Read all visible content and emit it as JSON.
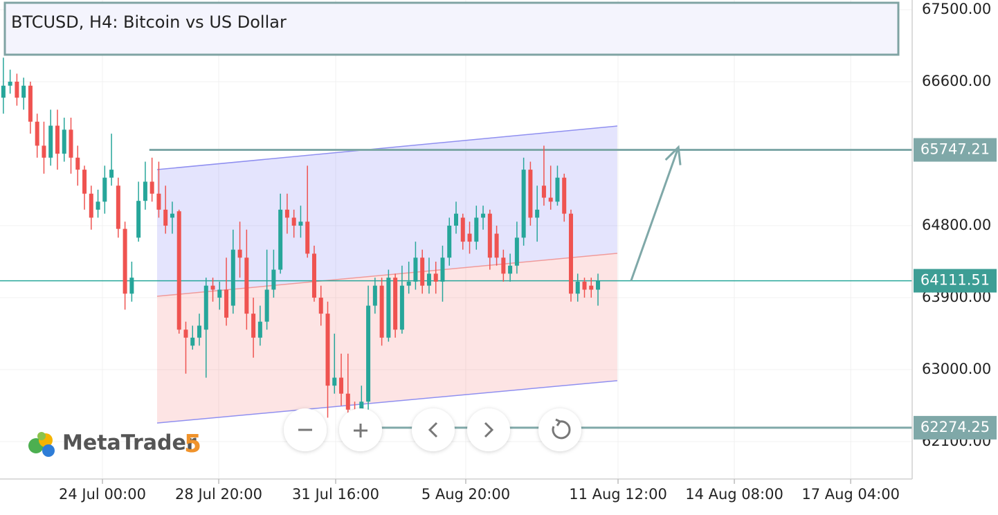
{
  "chart_data": {
    "type": "candlestick",
    "title": "BTCUSD, H4: Bitcoin vs US Dollar",
    "logo": {
      "name": "MetaTrader",
      "version": "5"
    },
    "up_color": "#26a69a",
    "down_color": "#ef5350",
    "x": [
      0,
      1,
      2,
      3,
      4,
      5,
      6,
      7,
      8,
      9,
      10,
      11,
      12,
      13,
      14,
      15,
      16,
      17,
      18,
      19,
      20,
      21,
      22,
      23,
      24,
      25,
      26,
      27,
      28,
      29,
      30,
      31,
      32,
      33,
      34,
      35,
      36,
      37,
      38,
      39,
      40,
      41,
      42,
      43,
      44,
      45,
      46,
      47,
      48,
      49,
      50,
      51,
      52,
      53,
      54,
      55,
      56,
      57,
      58,
      59,
      60,
      61,
      62,
      63,
      64,
      65,
      66,
      67,
      68,
      69,
      70,
      71,
      72,
      73,
      74,
      75,
      76,
      77,
      78,
      79,
      80,
      81,
      82,
      83,
      84,
      85,
      86,
      87,
      88
    ],
    "open": [
      66400,
      66550,
      66600,
      66400,
      66550,
      66100,
      65800,
      65650,
      66050,
      65700,
      66000,
      65650,
      65500,
      65200,
      65000,
      65100,
      65400,
      65300,
      64760,
      63950,
      64650,
      65110,
      65350,
      65200,
      65000,
      64900,
      64980,
      63500,
      63300,
      63400,
      63500,
      64050,
      63900,
      64000,
      63800,
      64500,
      64400,
      63700,
      63400,
      63600,
      64000,
      64250,
      65000,
      64900,
      64800,
      64850,
      64450,
      63900,
      63700,
      62800,
      62900,
      62700,
      62500,
      62450,
      62600,
      63800,
      64050,
      63400,
      64150,
      63500,
      64050,
      64100,
      64400,
      64050,
      64200,
      64100,
      64400,
      64800,
      64900,
      64700,
      64600,
      64900,
      64950,
      64700,
      64400,
      64200,
      64300,
      64650,
      65500,
      64900,
      65300,
      65150,
      65100,
      65400,
      64950,
      63950,
      64100,
      64050,
      64000
    ],
    "high": [
      66900,
      66750,
      66700,
      66650,
      66600,
      66200,
      66100,
      66250,
      66250,
      66150,
      66150,
      65800,
      65550,
      65300,
      65250,
      65550,
      65950,
      65400,
      64850,
      64350,
      65350,
      65600,
      65650,
      65600,
      65300,
      65100,
      65000,
      63600,
      63550,
      63700,
      64150,
      64150,
      64100,
      64400,
      64750,
      64850,
      64750,
      63900,
      63800,
      64500,
      64500,
      65200,
      65200,
      65000,
      65050,
      65550,
      64550,
      64050,
      63850,
      63450,
      63200,
      63200,
      62600,
      62800,
      64050,
      64150,
      64150,
      64250,
      64200,
      64300,
      64350,
      64600,
      64500,
      64400,
      64350,
      64550,
      64900,
      65100,
      64950,
      64850,
      65050,
      65050,
      65000,
      64800,
      64500,
      64450,
      64850,
      65650,
      65600,
      65300,
      65800,
      65550,
      65550,
      65450,
      65000,
      64200,
      64150,
      64150,
      64200
    ],
    "low": [
      66200,
      66450,
      66300,
      66250,
      65950,
      65650,
      65450,
      65550,
      65500,
      65600,
      65450,
      65300,
      65000,
      64750,
      64900,
      64950,
      65300,
      64650,
      63750,
      63850,
      64600,
      65000,
      65100,
      64900,
      64700,
      64700,
      63450,
      62950,
      63250,
      63300,
      62900,
      63850,
      63750,
      63550,
      63700,
      64150,
      63500,
      63150,
      63300,
      63500,
      63900,
      64200,
      64700,
      64650,
      64650,
      64400,
      63850,
      63550,
      62400,
      62700,
      62550,
      62400,
      62250,
      62350,
      62500,
      63700,
      63300,
      63350,
      63400,
      63450,
      63950,
      64000,
      63950,
      63950,
      63950,
      63850,
      64300,
      64700,
      64500,
      64450,
      64500,
      64750,
      64250,
      64300,
      64100,
      64100,
      64200,
      64550,
      64800,
      64600,
      65050,
      65000,
      65050,
      64850,
      63850,
      63850,
      63900,
      63900,
      63800
    ],
    "close": [
      66550,
      66600,
      66400,
      66550,
      66100,
      65800,
      65650,
      66050,
      65700,
      66000,
      65650,
      65500,
      65200,
      64900,
      65100,
      65400,
      65500,
      64760,
      63950,
      64150,
      65110,
      65350,
      65200,
      65000,
      64800,
      64950,
      63500,
      63400,
      63400,
      63550,
      64050,
      64000,
      64000,
      63650,
      64500,
      64400,
      63700,
      63400,
      63600,
      64000,
      64250,
      65000,
      64900,
      64800,
      64850,
      64450,
      63900,
      63700,
      62800,
      62900,
      62700,
      62500,
      62450,
      62600,
      63800,
      64050,
      63400,
      64150,
      63500,
      64050,
      64100,
      64400,
      64050,
      64200,
      64100,
      64400,
      64800,
      64950,
      64600,
      64600,
      64900,
      64950,
      64400,
      64400,
      64200,
      64300,
      64650,
      65500,
      64900,
      65000,
      65150,
      65100,
      65400,
      64950,
      63950,
      64100,
      64000,
      64000,
      64111.51
    ],
    "xlim": [
      -0.5,
      134.5
    ],
    "ylim": [
      61633,
      67621
    ],
    "xticks": [
      {
        "value": 14.66,
        "label": "24 Jul 00:00"
      },
      {
        "value": 31.87,
        "label": "28 Jul 20:00"
      },
      {
        "value": 49.18,
        "label": "31 Jul 16:00"
      },
      {
        "value": 68.43,
        "label": "5 Aug 20:00"
      },
      {
        "value": 90.97,
        "label": "11 Aug 12:00"
      },
      {
        "value": 108.18,
        "label": "14 Aug 08:00"
      },
      {
        "value": 125.4,
        "label": "17 Aug 04:00"
      }
    ],
    "yticks": [
      {
        "value": 67500,
        "label": "67500.00"
      },
      {
        "value": 66600,
        "label": "66600.00"
      },
      {
        "value": 64800,
        "label": "64800.00"
      },
      {
        "value": 63900,
        "label": "63900.00"
      },
      {
        "value": 63000,
        "label": "63000.00"
      },
      {
        "value": 62100,
        "label": "62100.00"
      }
    ],
    "grid": true,
    "channel": {
      "x": [
        22.75,
        90.86
      ],
      "upper": [
        65501,
        66046
      ],
      "middle": [
        63917,
        64454
      ],
      "lower": [
        62333,
        62862
      ]
    },
    "levels": [
      {
        "value": 65747.21,
        "x_start": 21.6
      },
      {
        "value": 62274.25,
        "x_start": 52.8
      }
    ],
    "current_price": 64111.51,
    "arrow": {
      "x": [
        92.9,
        99.9
      ],
      "y": [
        64111.51,
        65780
      ]
    }
  }
}
